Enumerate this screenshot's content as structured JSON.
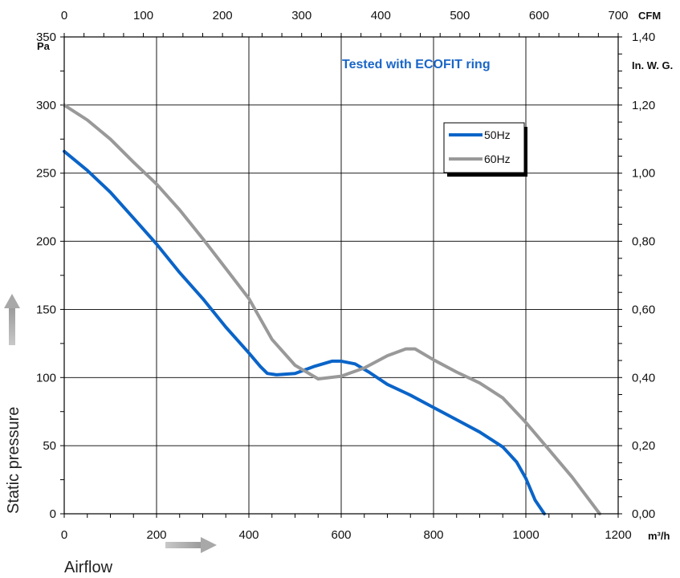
{
  "chart_data": {
    "type": "line",
    "annotation": "Tested with ECOFIT ring",
    "xlabel": "Airflow",
    "ylabel": "Static pressure",
    "x_unit": "m³/h",
    "y_unit": "Pa",
    "x2_unit": "CFM",
    "y2_unit": "In. W. G.",
    "xlim": [
      0,
      1200
    ],
    "ylim": [
      0,
      350
    ],
    "x2lim": [
      0,
      700
    ],
    "y2lim": [
      0,
      1.4
    ],
    "x_ticks": [
      "0",
      "200",
      "400",
      "600",
      "800",
      "1000",
      "1200"
    ],
    "y_ticks": [
      "0",
      "50",
      "100",
      "150",
      "200",
      "250",
      "300",
      "350"
    ],
    "x2_ticks": [
      "0",
      "100",
      "200",
      "300",
      "400",
      "500",
      "600",
      "700"
    ],
    "y2_ticks": [
      "0,00",
      "0,20",
      "0,40",
      "0,60",
      "0,80",
      "1,00",
      "1,20",
      "1,40"
    ],
    "grid": true,
    "legend_position": "top-right",
    "series": [
      {
        "name": "50Hz",
        "color": "#0a64c8",
        "points": [
          [
            0,
            266
          ],
          [
            50,
            252
          ],
          [
            100,
            236
          ],
          [
            150,
            217
          ],
          [
            200,
            198
          ],
          [
            250,
            177
          ],
          [
            300,
            158
          ],
          [
            350,
            137
          ],
          [
            400,
            118
          ],
          [
            425,
            108
          ],
          [
            440,
            103
          ],
          [
            460,
            102
          ],
          [
            500,
            103
          ],
          [
            540,
            108
          ],
          [
            580,
            112
          ],
          [
            600,
            112
          ],
          [
            630,
            110
          ],
          [
            660,
            104
          ],
          [
            700,
            95
          ],
          [
            750,
            87
          ],
          [
            800,
            78
          ],
          [
            850,
            69
          ],
          [
            900,
            60
          ],
          [
            950,
            49
          ],
          [
            980,
            38
          ],
          [
            1000,
            26
          ],
          [
            1020,
            10
          ],
          [
            1040,
            0
          ]
        ]
      },
      {
        "name": "60Hz",
        "color": "#999999",
        "points": [
          [
            0,
            300
          ],
          [
            50,
            289
          ],
          [
            100,
            275
          ],
          [
            150,
            258
          ],
          [
            200,
            242
          ],
          [
            250,
            223
          ],
          [
            300,
            202
          ],
          [
            350,
            180
          ],
          [
            400,
            158
          ],
          [
            450,
            128
          ],
          [
            500,
            109
          ],
          [
            550,
            99
          ],
          [
            600,
            101
          ],
          [
            650,
            107
          ],
          [
            700,
            116
          ],
          [
            740,
            121
          ],
          [
            760,
            121
          ],
          [
            800,
            113
          ],
          [
            850,
            104
          ],
          [
            900,
            96
          ],
          [
            950,
            85
          ],
          [
            1000,
            67
          ],
          [
            1050,
            47
          ],
          [
            1100,
            27
          ],
          [
            1160,
            0
          ]
        ]
      }
    ]
  }
}
